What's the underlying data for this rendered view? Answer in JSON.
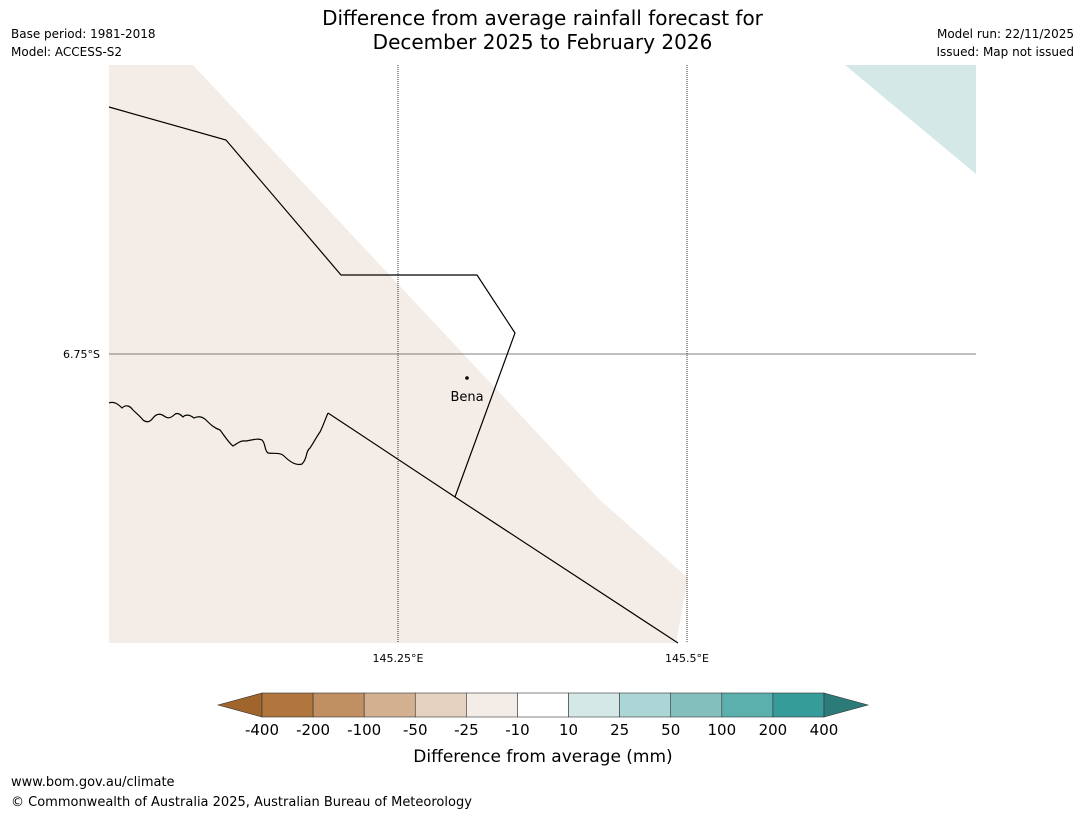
{
  "title": {
    "line1": "Difference from average rainfall forecast for",
    "line2": "December 2025 to February 2026"
  },
  "meta_left": {
    "base_period": "Base period: 1981-2018",
    "model": "Model: ACCESS-S2"
  },
  "meta_right": {
    "model_run": "Model run: 22/11/2025",
    "issued": "Issued: Map not issued"
  },
  "map": {
    "lat_label": "6.75°S",
    "lon_labels": [
      "145.25°E",
      "145.5°E"
    ],
    "place": "Bena",
    "colors": {
      "dry_light": "#f4ede7",
      "wet_light": "#d5e8e8",
      "boundary": "#000000"
    }
  },
  "legend": {
    "title": "Difference from average (mm)",
    "ticks": [
      "-400",
      "-200",
      "-100",
      "-50",
      "-25",
      "-10",
      "10",
      "25",
      "50",
      "100",
      "200",
      "400"
    ],
    "colors": [
      "#a0652d",
      "#b0763d",
      "#c09063",
      "#d3b090",
      "#e5d1bf",
      "#f4ede7",
      "#ffffff",
      "#d5e8e8",
      "#acd5d5",
      "#83c0bd",
      "#5bafad",
      "#359c99",
      "#2c7b79"
    ]
  },
  "footer": {
    "url": "www.bom.gov.au/climate",
    "copyright": "© Commonwealth of Australia 2025, Australian Bureau of Meteorology"
  }
}
